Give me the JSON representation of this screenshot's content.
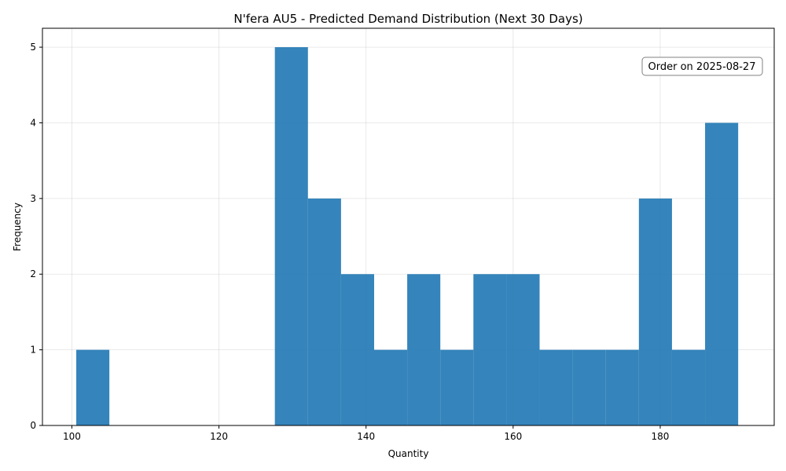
{
  "chart_data": {
    "type": "bar",
    "subtype": "histogram",
    "title": "N'fera AU5 - Predicted Demand Distribution (Next 30 Days)",
    "xlabel": "Quantity",
    "ylabel": "Frequency",
    "xlim": [
      96,
      195.5
    ],
    "ylim": [
      0,
      5.25
    ],
    "xticks": [
      100,
      120,
      140,
      160,
      180
    ],
    "yticks": [
      0,
      1,
      2,
      3,
      4,
      5
    ],
    "grid": true,
    "bin_edges": [
      100.6,
      105.1,
      109.6,
      114.1,
      118.6,
      123.1,
      127.6,
      132.1,
      136.6,
      141.1,
      145.6,
      150.1,
      154.6,
      159.1,
      163.6,
      168.1,
      172.6,
      177.1,
      181.6,
      186.1,
      190.6
    ],
    "counts": [
      1,
      0,
      0,
      0,
      0,
      0,
      5,
      3,
      2,
      1,
      2,
      1,
      2,
      2,
      1,
      1,
      1,
      3,
      1,
      4
    ],
    "color": "#1f77b4",
    "annotation": "Order on 2025-08-27"
  }
}
